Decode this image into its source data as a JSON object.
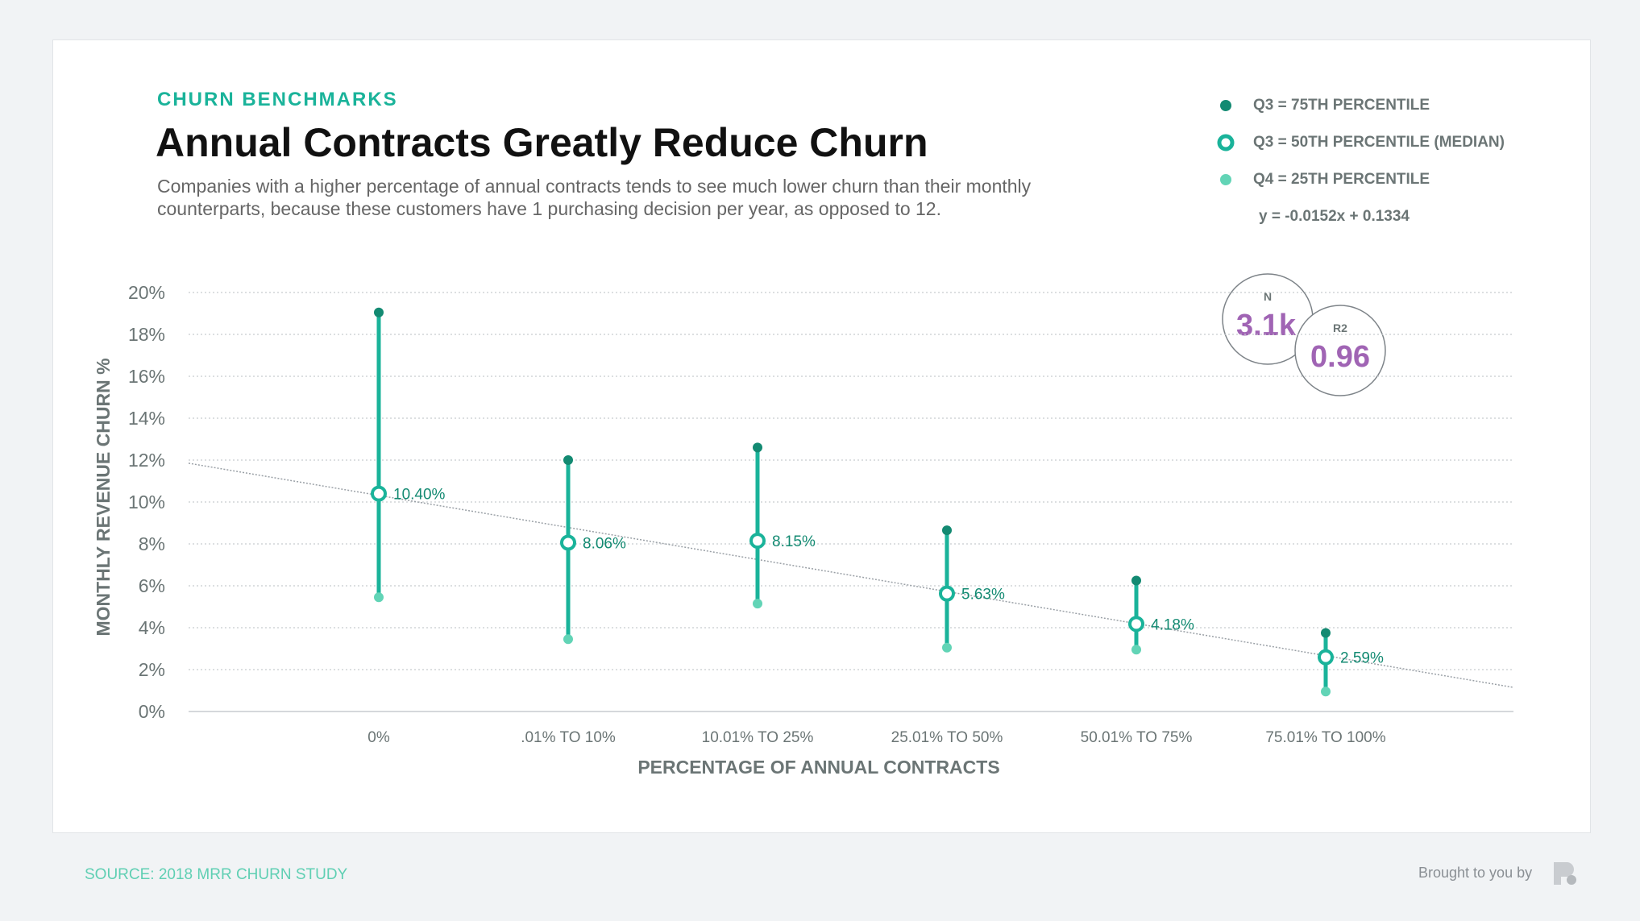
{
  "header": {
    "kicker": "CHURN BENCHMARKS",
    "title": "Annual Contracts Greatly Reduce Churn",
    "subtitle": "Companies with a higher percentage of annual contracts tends to see much lower churn than their monthly counterparts, because these customers have 1 purchasing decision per year, as opposed to 12."
  },
  "legend": {
    "items": [
      "Q3 = 75TH PERCENTILE",
      "Q3 = 50TH PERCENTILE (MEDIAN)",
      "Q4 = 25TH PERCENTILE"
    ],
    "equation": "y = -0.0152x + 0.1334"
  },
  "stats": {
    "n_label": "N",
    "n_value": "3.1k",
    "r2_label": "R2",
    "r2_value": "0.96"
  },
  "colors": {
    "q3": "#138a72",
    "median": "#1ab39a",
    "q1": "#62d4b6",
    "stat": "#a064b4",
    "trend": "#9aa0a6"
  },
  "chart_data": {
    "type": "scatter",
    "xlabel": "PERCENTAGE OF ANNUAL CONTRACTS",
    "ylabel": "MONTHLY REVENUE CHURN %",
    "categories": [
      "0%",
      ".01% TO 10%",
      "10.01% TO 25%",
      "25.01% TO 50%",
      "50.01% TO 75%",
      "75.01% TO 100%"
    ],
    "ylim": [
      0,
      20
    ],
    "yticks": [
      "0%",
      "2%",
      "4%",
      "6%",
      "8%",
      "10%",
      "12%",
      "14%",
      "16%",
      "18%",
      "20%"
    ],
    "grid": true,
    "legend_position": "top-right",
    "series": [
      {
        "name": "Q3 = 75TH PERCENTILE",
        "values": [
          19.05,
          12.0,
          12.6,
          8.65,
          6.25,
          3.75
        ]
      },
      {
        "name": "Q3 = 50TH PERCENTILE (MEDIAN)",
        "values": [
          10.4,
          8.06,
          8.15,
          5.63,
          4.18,
          2.59
        ],
        "labels": [
          "10.40%",
          "8.06%",
          "8.15%",
          "5.63%",
          "4.18%",
          "2.59%"
        ]
      },
      {
        "name": "Q4 = 25TH PERCENTILE",
        "values": [
          5.45,
          3.45,
          5.15,
          3.05,
          2.95,
          0.95
        ]
      }
    ],
    "trendline": {
      "equation": "y = -0.0152x + 0.1334",
      "start": 11.85,
      "end": 1.15
    }
  },
  "footer": {
    "source": "SOURCE: 2018 MRR CHURN STUDY",
    "brought_by": "Brought to you by"
  }
}
